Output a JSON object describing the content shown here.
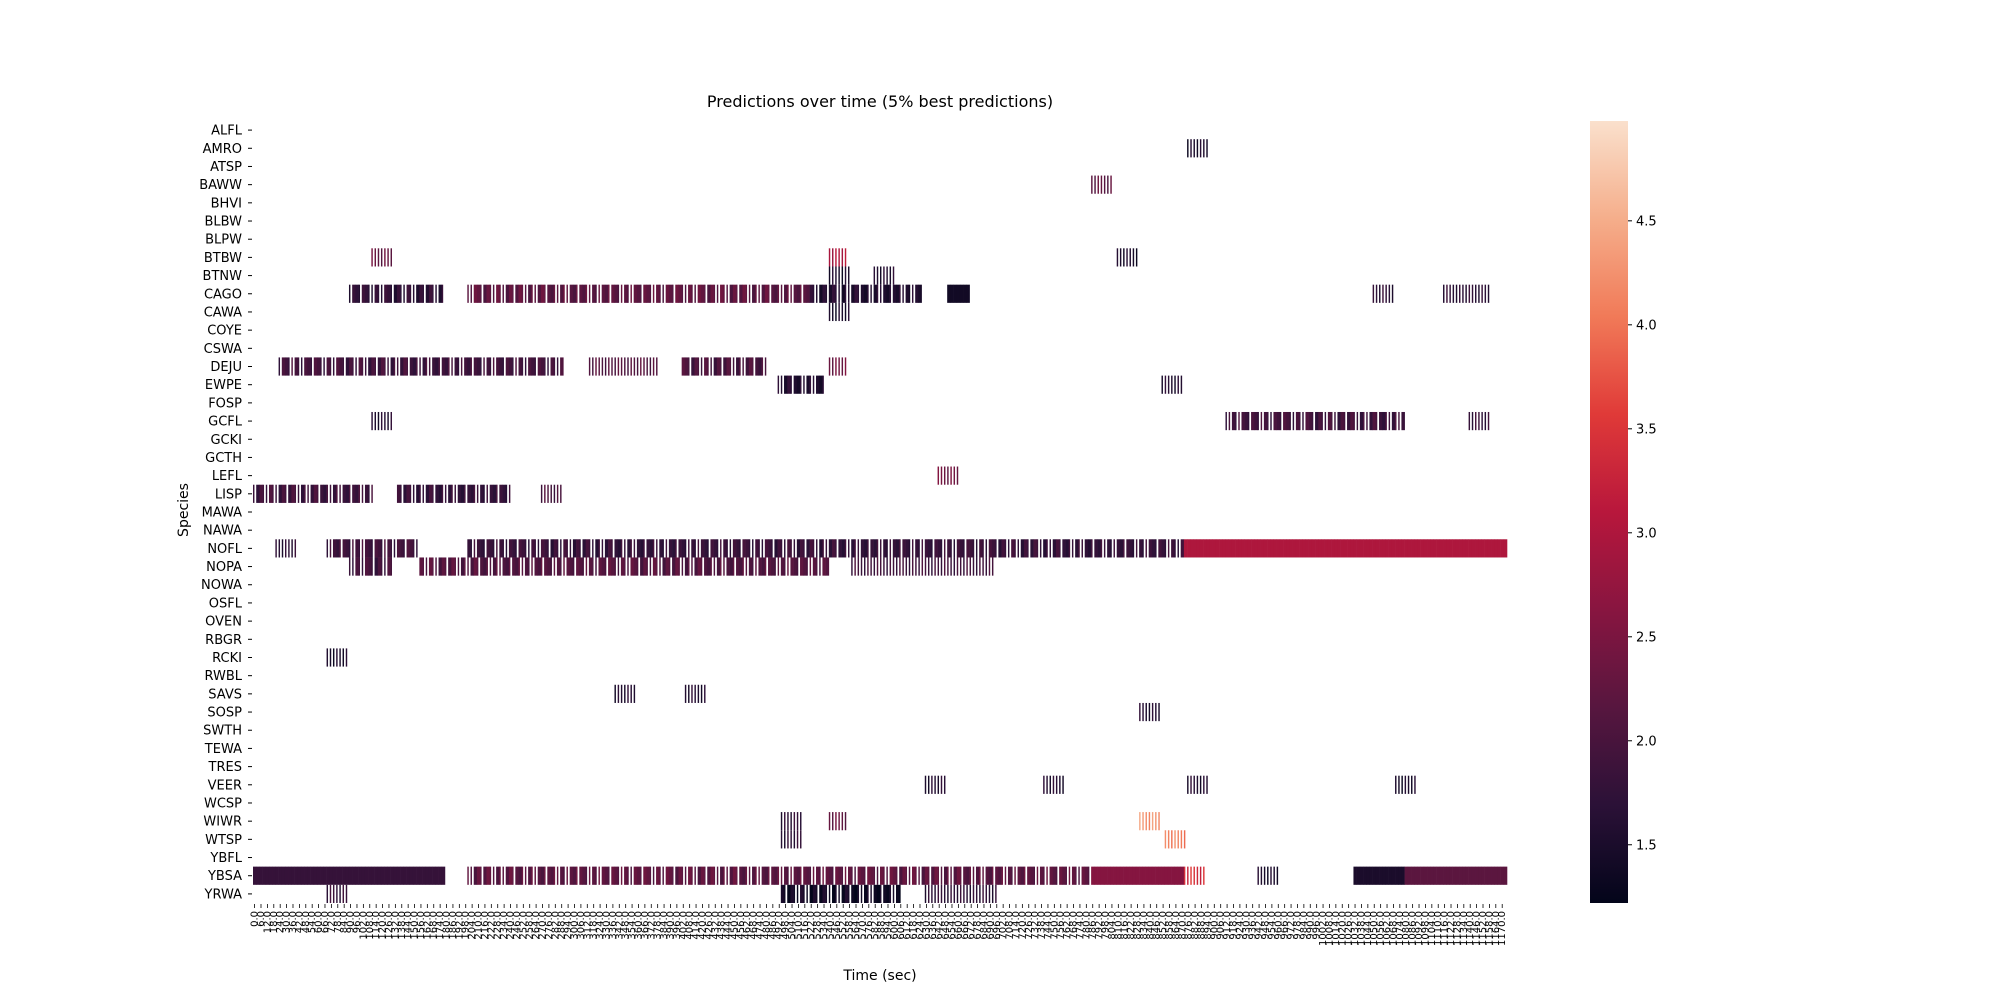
{
  "chart_data": {
    "type": "heatmap",
    "title": "Predictions over time (5% best predictions)",
    "xlabel": "Time (sec)",
    "ylabel": "Species",
    "species": [
      "ALFL",
      "AMRO",
      "ATSP",
      "BAWW",
      "BHVI",
      "BLBW",
      "BLPW",
      "BTBW",
      "BTNW",
      "CAGO",
      "CAWA",
      "COYE",
      "CSWA",
      "DEJU",
      "EWPE",
      "FOSP",
      "GCFL",
      "GCKI",
      "GCTH",
      "LEFL",
      "LISP",
      "MAWA",
      "NAWA",
      "NOFL",
      "NOPA",
      "NOWA",
      "OSFL",
      "OVEN",
      "RBGR",
      "RCKI",
      "RWBL",
      "SAVS",
      "SOSP",
      "SWTH",
      "TEWA",
      "TRES",
      "VEER",
      "WCSP",
      "WIWR",
      "WTSP",
      "YBFL",
      "YBSA",
      "YRWA"
    ],
    "time_range": [
      0.0,
      1176.0
    ],
    "time_step": 3.0,
    "x_tick_step_sec": 6.0,
    "colorbar": {
      "vmin": 1.22,
      "vmax": 4.98,
      "ticks": [
        1.5,
        2.0,
        2.5,
        3.0,
        3.5,
        4.0,
        4.5
      ]
    },
    "colormap": [
      "#03051a",
      "#2b1137",
      "#57163f",
      "#881540",
      "#b8173c",
      "#e03a38",
      "#f17a58",
      "#f5ae8b",
      "#fae0cc"
    ],
    "cells": [
      {
        "species": "AMRO",
        "start": 876,
        "end": 897,
        "value": 1.5,
        "style": "striped"
      },
      {
        "species": "BAWW",
        "start": 786,
        "end": 807,
        "value": 2.2,
        "style": "striped"
      },
      {
        "species": "BTBW",
        "start": 111,
        "end": 132,
        "value": 2.3,
        "style": "striped"
      },
      {
        "species": "BTBW",
        "start": 540,
        "end": 558,
        "value": 3.0,
        "style": "striped"
      },
      {
        "species": "BTBW",
        "start": 810,
        "end": 831,
        "value": 1.5,
        "style": "striped"
      },
      {
        "species": "BTNW",
        "start": 540,
        "end": 561,
        "value": 1.5,
        "style": "striped"
      },
      {
        "species": "BTNW",
        "start": 582,
        "end": 603,
        "value": 1.6,
        "style": "striped"
      },
      {
        "species": "CAGO",
        "start": 90,
        "end": 180,
        "value": 1.7,
        "style": "mixed"
      },
      {
        "species": "CAGO",
        "start": 201,
        "end": 522,
        "value": 2.2,
        "style": "mixed"
      },
      {
        "species": "CAGO",
        "start": 522,
        "end": 627,
        "value": 1.6,
        "style": "mixed"
      },
      {
        "species": "CAGO",
        "start": 651,
        "end": 672,
        "value": 1.4,
        "style": "solid"
      },
      {
        "species": "CAGO",
        "start": 1050,
        "end": 1071,
        "value": 1.7,
        "style": "striped"
      },
      {
        "species": "CAGO",
        "start": 1116,
        "end": 1161,
        "value": 1.7,
        "style": "striped"
      },
      {
        "species": "CAWA",
        "start": 540,
        "end": 561,
        "value": 1.5,
        "style": "striped"
      },
      {
        "species": "DEJU",
        "start": 24,
        "end": 291,
        "value": 1.9,
        "style": "mixed"
      },
      {
        "species": "DEJU",
        "start": 315,
        "end": 381,
        "value": 2.1,
        "style": "striped"
      },
      {
        "species": "DEJU",
        "start": 402,
        "end": 483,
        "value": 2.0,
        "style": "mixed"
      },
      {
        "species": "DEJU",
        "start": 540,
        "end": 558,
        "value": 2.4,
        "style": "striped"
      },
      {
        "species": "EWPE",
        "start": 492,
        "end": 537,
        "value": 1.6,
        "style": "mixed"
      },
      {
        "species": "EWPE",
        "start": 852,
        "end": 873,
        "value": 1.6,
        "style": "striped"
      },
      {
        "species": "GCFL",
        "start": 111,
        "end": 132,
        "value": 1.6,
        "style": "striped"
      },
      {
        "species": "GCFL",
        "start": 912,
        "end": 1080,
        "value": 1.9,
        "style": "mixed"
      },
      {
        "species": "GCFL",
        "start": 1140,
        "end": 1161,
        "value": 1.8,
        "style": "striped"
      },
      {
        "species": "LEFL",
        "start": 642,
        "end": 663,
        "value": 2.4,
        "style": "striped"
      },
      {
        "species": "LISP",
        "start": 0,
        "end": 114,
        "value": 1.9,
        "style": "mixed"
      },
      {
        "species": "LISP",
        "start": 135,
        "end": 243,
        "value": 1.8,
        "style": "mixed"
      },
      {
        "species": "LISP",
        "start": 270,
        "end": 291,
        "value": 2.0,
        "style": "striped"
      },
      {
        "species": "NOFL",
        "start": 21,
        "end": 42,
        "value": 1.7,
        "style": "striped"
      },
      {
        "species": "NOFL",
        "start": 69,
        "end": 156,
        "value": 1.9,
        "style": "mixed"
      },
      {
        "species": "NOFL",
        "start": 201,
        "end": 873,
        "value": 1.8,
        "style": "mixed"
      },
      {
        "species": "NOFL",
        "start": 873,
        "end": 1176,
        "value": 3.0,
        "style": "solid"
      },
      {
        "species": "NOPA",
        "start": 90,
        "end": 132,
        "value": 1.9,
        "style": "mixed"
      },
      {
        "species": "NOPA",
        "start": 156,
        "end": 540,
        "value": 2.1,
        "style": "mixed"
      },
      {
        "species": "NOPA",
        "start": 561,
        "end": 696,
        "value": 1.9,
        "style": "striped"
      },
      {
        "species": "RCKI",
        "start": 69,
        "end": 90,
        "value": 1.5,
        "style": "striped"
      },
      {
        "species": "SAVS",
        "start": 339,
        "end": 360,
        "value": 1.6,
        "style": "striped"
      },
      {
        "species": "SAVS",
        "start": 405,
        "end": 426,
        "value": 1.6,
        "style": "striped"
      },
      {
        "species": "SOSP",
        "start": 831,
        "end": 852,
        "value": 1.6,
        "style": "striped"
      },
      {
        "species": "VEER",
        "start": 630,
        "end": 651,
        "value": 1.6,
        "style": "striped"
      },
      {
        "species": "VEER",
        "start": 741,
        "end": 762,
        "value": 1.6,
        "style": "striped"
      },
      {
        "species": "VEER",
        "start": 876,
        "end": 897,
        "value": 1.6,
        "style": "striped"
      },
      {
        "species": "VEER",
        "start": 1071,
        "end": 1092,
        "value": 1.5,
        "style": "striped"
      },
      {
        "species": "WIWR",
        "start": 495,
        "end": 516,
        "value": 1.7,
        "style": "striped"
      },
      {
        "species": "WIWR",
        "start": 540,
        "end": 558,
        "value": 2.3,
        "style": "striped"
      },
      {
        "species": "WIWR",
        "start": 831,
        "end": 852,
        "value": 4.3,
        "style": "striped"
      },
      {
        "species": "WTSP",
        "start": 495,
        "end": 516,
        "value": 1.7,
        "style": "striped"
      },
      {
        "species": "WTSP",
        "start": 855,
        "end": 876,
        "value": 4.1,
        "style": "striped"
      },
      {
        "species": "YBSA",
        "start": 0,
        "end": 180,
        "value": 1.8,
        "style": "solid"
      },
      {
        "species": "YBSA",
        "start": 201,
        "end": 786,
        "value": 2.2,
        "style": "mixed"
      },
      {
        "species": "YBSA",
        "start": 786,
        "end": 873,
        "value": 2.6,
        "style": "solid"
      },
      {
        "species": "YBSA",
        "start": 873,
        "end": 894,
        "value": 3.4,
        "style": "striped"
      },
      {
        "species": "YBSA",
        "start": 942,
        "end": 963,
        "value": 1.5,
        "style": "striped"
      },
      {
        "species": "YBSA",
        "start": 1032,
        "end": 1080,
        "value": 1.5,
        "style": "solid"
      },
      {
        "species": "YBSA",
        "start": 1080,
        "end": 1176,
        "value": 2.2,
        "style": "solid"
      },
      {
        "species": "YRWA",
        "start": 69,
        "end": 90,
        "value": 1.8,
        "style": "striped"
      },
      {
        "species": "YRWA",
        "start": 495,
        "end": 609,
        "value": 1.4,
        "style": "mixed"
      },
      {
        "species": "YRWA",
        "start": 630,
        "end": 699,
        "value": 1.7,
        "style": "striped"
      }
    ]
  }
}
